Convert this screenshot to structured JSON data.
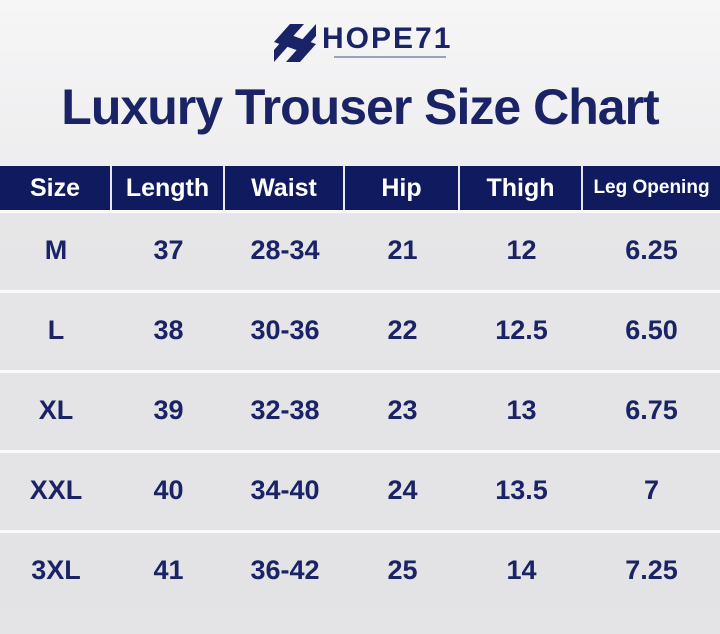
{
  "header": {
    "brand": "HOPE71",
    "title": "Luxury Trouser Size Chart"
  },
  "table": {
    "columns": [
      "Size",
      "Length",
      "Waist",
      "Hip",
      "Thigh",
      "Leg Opening"
    ],
    "rows": [
      [
        "M",
        "37",
        "28-34",
        "21",
        "12",
        "6.25"
      ],
      [
        "L",
        "38",
        "30-36",
        "22",
        "12.5",
        "6.50"
      ],
      [
        "XL",
        "39",
        "32-38",
        "23",
        "13",
        "6.75"
      ],
      [
        "XXL",
        "40",
        "34-40",
        "24",
        "13.5",
        "7"
      ],
      [
        "3XL",
        "41",
        "36-42",
        "25",
        "14",
        "7.25"
      ]
    ]
  }
}
